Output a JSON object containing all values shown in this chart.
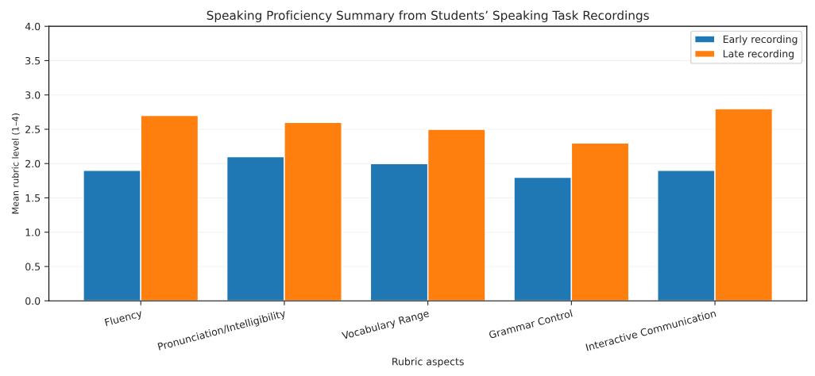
{
  "chart_data": {
    "type": "bar",
    "title": "Speaking Proficiency Summary from Students’ Speaking Task Recordings",
    "xlabel": "Rubric aspects",
    "ylabel": "Mean rubric level (1–4)",
    "categories": [
      "Fluency",
      "Pronunciation/Intelligibility",
      "Vocabulary Range",
      "Grammar Control",
      "Interactive Communication"
    ],
    "series": [
      {
        "name": "Early recording",
        "color": "#1f77b4",
        "values": [
          1.9,
          2.1,
          2.0,
          1.8,
          1.9
        ]
      },
      {
        "name": "Late recording",
        "color": "#ff7f0e",
        "values": [
          2.7,
          2.6,
          2.5,
          2.3,
          2.8
        ]
      }
    ],
    "ylim": [
      0,
      4
    ],
    "yticks": [
      {
        "value": 0,
        "label": "0.0"
      },
      0.5,
      {
        "value": 1,
        "label": "1.0"
      },
      1.5,
      {
        "value": 2,
        "label": "2.0"
      },
      2.5,
      {
        "value": 3,
        "label": "3.0"
      },
      3.5,
      {
        "value": 4,
        "label": "4.0"
      }
    ],
    "grid": "y",
    "legend": "top right"
  }
}
